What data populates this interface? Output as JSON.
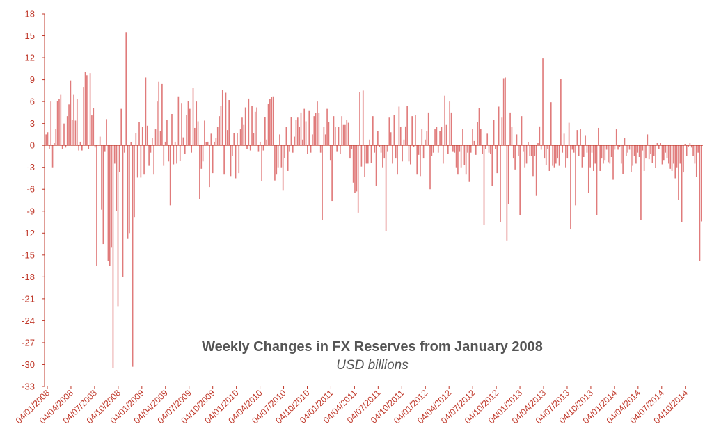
{
  "chart_data": {
    "type": "bar",
    "title": "Weekly Changes in FX Reserves from January 2008",
    "subtitle": "USD billions",
    "xlabel": "",
    "ylabel": "",
    "ylim": [
      -33,
      18
    ],
    "yticks": [
      "18",
      "15",
      "12",
      "9",
      "6",
      "3",
      "0",
      "-3",
      "-6",
      "-9",
      "-12",
      "-15",
      "-18",
      "-21",
      "-24",
      "-27",
      "-30",
      "-33"
    ],
    "xtick_labels": [
      "04/01/2008",
      "04/04/2008",
      "04/07/2008",
      "04/10/2008",
      "04/01/2009",
      "04/04/2009",
      "04/07/2009",
      "04/10/2009",
      "04/01/2010",
      "04/04/2010",
      "04/07/2010",
      "04/10/2010",
      "04/01/2011",
      "04/04/2011",
      "04/07/2011",
      "04/10/2011",
      "04/01/2012",
      "04/04/2012",
      "04/07/2012",
      "04/10/2012",
      "04/01/2013",
      "04/04/2013",
      "04/07/2013",
      "04/10/2013",
      "04/01/2014",
      "04/04/2014",
      "04/07/2014",
      "04/10/2014"
    ],
    "bar_color": "#e07b7b",
    "axis_color": "#c0392b",
    "grid": false,
    "values": [
      1.5,
      1.8,
      -0.5,
      6.0,
      -3.0,
      0.3,
      2.3,
      6.1,
      6.3,
      7.0,
      -0.5,
      3.0,
      -0.3,
      4.0,
      5.6,
      8.9,
      3.5,
      7.0,
      3.4,
      6.3,
      -0.7,
      0.5,
      -0.7,
      8.0,
      10.1,
      9.6,
      -0.5,
      9.9,
      4.1,
      5.1,
      -0.3,
      -16.5,
      0.1,
      1.2,
      -8.8,
      -13.5,
      -0.8,
      3.6,
      -15.8,
      -16.5,
      -14.0,
      -30.5,
      -2.5,
      -9.0,
      -22.0,
      -3.6,
      5.0,
      -18.0,
      -1.0,
      15.5,
      -12.8,
      -12.0,
      0.4,
      -30.3,
      -9.8,
      1.7,
      -4.4,
      3.2,
      -4.4,
      2.5,
      -4.0,
      9.3,
      2.7,
      -2.8,
      -1.0,
      1.0,
      -4.0,
      2.2,
      6.0,
      8.7,
      2.0,
      8.4,
      -2.8,
      0.5,
      3.5,
      -2.2,
      -8.2,
      4.3,
      -2.6,
      0.5,
      -2.5,
      6.7,
      -2.1,
      5.8,
      1.1,
      -1.2,
      4.2,
      6.1,
      5.0,
      -1.0,
      7.9,
      2.4,
      6.0,
      3.3,
      -7.4,
      -3.2,
      -2.2,
      3.4,
      0.4,
      0.5,
      -5.7,
      1.6,
      -3.8,
      0.5,
      1.0,
      2.5,
      4.0,
      5.4,
      7.6,
      -4.0,
      7.2,
      2.1,
      6.2,
      -4.2,
      -1.5,
      1.7,
      -4.5,
      1.7,
      -3.8,
      2.2,
      3.8,
      2.8,
      5.2,
      -0.5,
      6.4,
      -0.7,
      5.4,
      1.7,
      4.6,
      5.2,
      -0.8,
      0.5,
      -4.9,
      -0.7,
      3.9,
      0.8,
      5.7,
      6.3,
      6.6,
      6.7,
      -4.8,
      -4.0,
      -3.0,
      1.5,
      -3.0,
      -6.2,
      -1.7,
      2.5,
      -3.5,
      -0.8,
      3.9,
      -1.0,
      1.2,
      3.5,
      3.8,
      2.5,
      4.5,
      0.8,
      5.0,
      3.3,
      -1.2,
      4.8,
      -1.0,
      1.5,
      4.0,
      4.4,
      6.0,
      4.4,
      -1.0,
      -10.2,
      2.5,
      1.5,
      5.0,
      3.2,
      -2.0,
      -7.6,
      4.0,
      2.5,
      -0.8,
      2.5,
      -1.2,
      4.0,
      2.8,
      2.8,
      3.5,
      3.1,
      -1.8,
      -0.5,
      -5.1,
      -6.5,
      -6.3,
      -9.2,
      7.3,
      -2.9,
      7.5,
      -4.3,
      -2.5,
      -2.5,
      0.8,
      -2.4,
      4.0,
      -1.0,
      -5.5,
      2.0,
      -0.2,
      -1.0,
      -3.0,
      -1.8,
      -11.7,
      -0.8,
      3.8,
      1.8,
      -2.5,
      4.2,
      -1.8,
      -4.0,
      5.3,
      2.5,
      -2.2,
      0.8,
      2.6,
      5.4,
      -2.2,
      -2.6,
      4.0,
      -0.2,
      4.2,
      -4.0,
      -1.3,
      -4.2,
      2.2,
      -1.8,
      0.8,
      2.0,
      4.5,
      -6.0,
      -1.5,
      -1.0,
      2.2,
      2.5,
      -1.0,
      2.0,
      2.5,
      -2.5,
      6.8,
      2.8,
      -1.2,
      6.0,
      4.5,
      -0.8,
      -1.0,
      -3.0,
      -4.0,
      -0.8,
      -3.0,
      2.3,
      -2.7,
      -4.0,
      -1.0,
      -5.0,
      -1.0,
      2.3,
      0.6,
      -1.3,
      3.2,
      5.1,
      2.3,
      -1.2,
      -10.9,
      -0.5,
      1.6,
      -1.0,
      -1.2,
      -5.5,
      3.5,
      -0.5,
      -3.8,
      5.3,
      -10.5,
      3.8,
      9.2,
      9.3,
      -13.0,
      -8.0,
      4.5,
      2.5,
      -1.8,
      -3.3,
      1.5,
      -1.5,
      -9.5,
      4.0,
      -0.8,
      -3.0,
      -2.5,
      0.4,
      -1.5,
      -1.5,
      -4.2,
      -1.5,
      -6.9,
      0.3,
      2.6,
      -0.6,
      11.9,
      -1.8,
      -2.7,
      -0.5,
      -3.5,
      5.9,
      -2.8,
      -3.0,
      -2.5,
      -1.8,
      -2.8,
      9.1,
      -1.0,
      1.6,
      -3.0,
      -1.8,
      3.1,
      -11.5,
      -0.6,
      -1.0,
      -8.2,
      2.1,
      -1.5,
      2.3,
      -3.0,
      -1.6,
      1.4,
      -1.0,
      -6.5,
      -3.0,
      -1.0,
      -3.5,
      -2.5,
      -9.5,
      2.4,
      -3.5,
      -1.8,
      -2.5,
      -2.0,
      -0.6,
      -2.3,
      -2.5,
      -1.6,
      -4.7,
      -0.6,
      2.2,
      -0.6,
      -0.2,
      -2.5,
      -3.9,
      1.0,
      -1.5,
      -1.0,
      -0.6,
      -3.6,
      -2.8,
      -1.5,
      -2.5,
      -1.0,
      -1.6,
      -10.2,
      -0.7,
      -3.5,
      -1.8,
      1.5,
      -1.9,
      -1.2,
      -2.4,
      -1.5,
      -3.1,
      0.3,
      -0.5,
      0.3,
      -2.6,
      -2.0,
      -1.0,
      -1.7,
      -2.5,
      -3.2,
      -3.5,
      -2.5,
      -4.5,
      -3.0,
      -7.5,
      -2.5,
      -10.5,
      -3.7,
      0.2,
      -1.5,
      -0.2,
      0.3,
      -0.3,
      -1.5,
      -2.5,
      -4.3,
      -1.0,
      -15.8,
      -10.4
    ]
  }
}
